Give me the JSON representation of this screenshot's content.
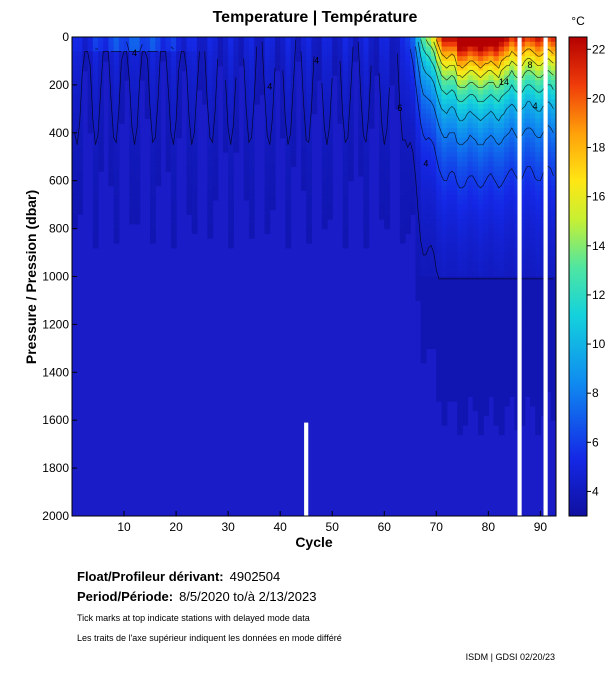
{
  "chart_data": {
    "type": "heatmap",
    "title": "Temperature | Température",
    "xlabel": "Cycle",
    "ylabel": "Pressure / Pression (dbar)",
    "xlim": [
      0,
      93
    ],
    "ylim": [
      2000,
      0
    ],
    "x_ticks": [
      10,
      20,
      30,
      40,
      50,
      60,
      70,
      80,
      90
    ],
    "y_ticks": [
      0,
      200,
      400,
      600,
      800,
      1000,
      1200,
      1400,
      1600,
      1800,
      2000
    ],
    "colorbar": {
      "unit": "°C",
      "range": [
        3,
        22.5
      ],
      "ticks": [
        4,
        6,
        8,
        10,
        12,
        14,
        16,
        18,
        20,
        22
      ]
    },
    "contour_labels": [
      {
        "cycle": 83,
        "pressure": 200,
        "value": "14"
      },
      {
        "cycle": 47,
        "pressure": 110,
        "value": "4"
      },
      {
        "cycle": 38,
        "pressure": 220,
        "value": "4"
      },
      {
        "cycle": 12,
        "pressure": 80,
        "value": "4"
      },
      {
        "cycle": 89,
        "pressure": 300,
        "value": "4"
      },
      {
        "cycle": 63,
        "pressure": 310,
        "value": "6"
      },
      {
        "cycle": 68,
        "pressure": 540,
        "value": "4"
      },
      {
        "cycle": 88,
        "pressure": 130,
        "value": "8"
      }
    ],
    "missing_profiles": [
      {
        "cycle": 45,
        "from": 1610,
        "to": 2000
      },
      {
        "cycle": 86,
        "from": 0,
        "to": 2000
      },
      {
        "cycle": 91,
        "from": 0,
        "to": 2000
      }
    ]
  },
  "info": {
    "float_label": "Float/Profileur dérivant:",
    "float_value": "4902504",
    "period_label": "Period/Période:",
    "period_value": "8/5/2020  to/à  2/13/2023",
    "note_en": "Tick marks at top indicate stations with delayed mode data",
    "note_fr": "Les traits de l'axe supérieur indiquent les données en mode différé",
    "stamp": "ISDM | GDSI  02/20/23"
  }
}
